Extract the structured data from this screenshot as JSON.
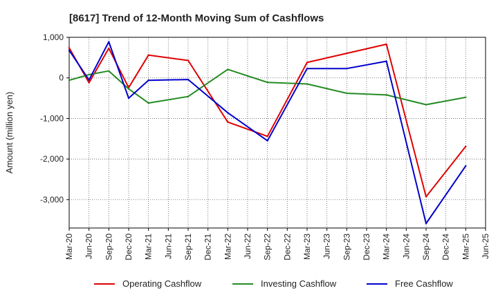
{
  "chart_data": {
    "type": "line",
    "title": "[8617]  Trend of 12-Month Moving Sum of Cashflows",
    "xlabel": "",
    "ylabel": "Amount (million yen)",
    "ylim": [
      -3700,
      1000
    ],
    "yticks": [
      1000,
      0,
      -1000,
      -2000,
      -3000
    ],
    "ytick_labels": [
      "1,000",
      "0",
      "-1,000",
      "-2,000",
      "-3,000"
    ],
    "categories": [
      "Mar-20",
      "Jun-20",
      "Sep-20",
      "Dec-20",
      "Mar-21",
      "Jun-21",
      "Sep-21",
      "Dec-21",
      "Mar-22",
      "Jun-22",
      "Sep-22",
      "Dec-22",
      "Mar-23",
      "Jun-23",
      "Sep-23",
      "Dec-23",
      "Mar-24",
      "Jun-24",
      "Sep-24",
      "Dec-24",
      "Mar-25",
      "Jun-25"
    ],
    "grid": true,
    "legend_position": "bottom",
    "series": [
      {
        "name": "Operating Cashflow",
        "color": "#e00000",
        "values": [
          740,
          -120,
          730,
          -240,
          560,
          null,
          430,
          null,
          -1090,
          null,
          -1440,
          null,
          380,
          null,
          null,
          null,
          830,
          null,
          -2930,
          null,
          -1690,
          null
        ]
      },
      {
        "name": "Investing Cashflow",
        "color": "#228b22",
        "values": [
          -60,
          80,
          170,
          -270,
          -620,
          null,
          -460,
          null,
          210,
          null,
          -110,
          null,
          -150,
          null,
          -380,
          null,
          -420,
          null,
          -660,
          null,
          -480,
          null
        ]
      },
      {
        "name": "Free Cashflow",
        "color": "#0000cc",
        "values": [
          680,
          -50,
          890,
          -500,
          -60,
          null,
          -40,
          null,
          -860,
          null,
          -1550,
          null,
          230,
          null,
          230,
          null,
          410,
          null,
          -3590,
          null,
          -2170,
          null
        ]
      }
    ]
  }
}
